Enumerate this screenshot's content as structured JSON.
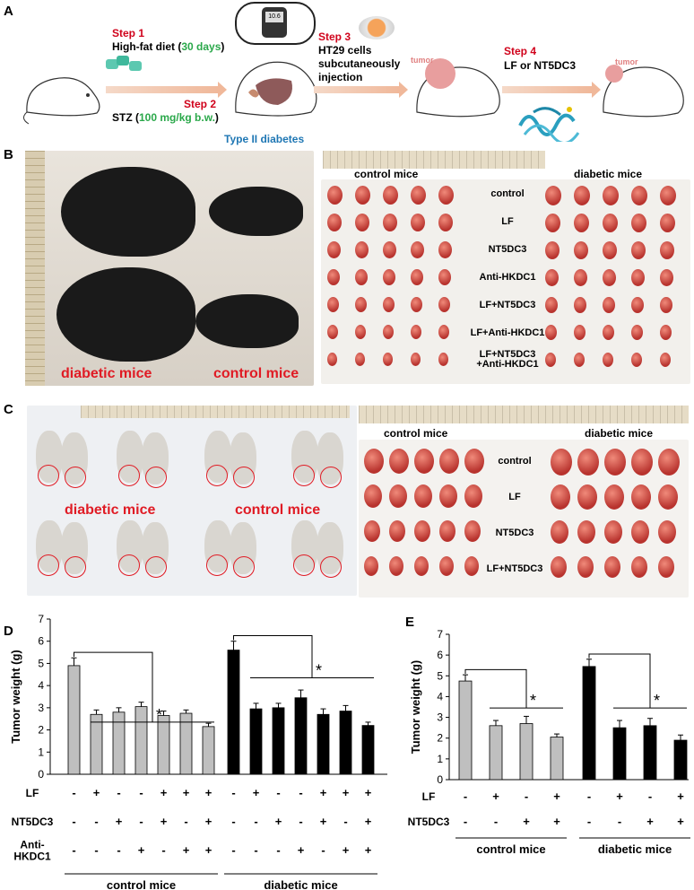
{
  "panels": {
    "A": {
      "letter": "A",
      "step1_title": "Step 1",
      "step1_text": "High-fat diet (",
      "step1_days": "30 days",
      "step1_close": ")",
      "step2_title": "Step 2",
      "step2_text": "STZ (",
      "step2_dose": "100 mg/kg b.w.",
      "step2_close": ")",
      "diabetes_label": "Type II diabetes",
      "glucometer_text": "10.6",
      "step3_title": "Step 3",
      "step3_text_1": "HT29 cells",
      "step3_text_2": "subcutaneously",
      "step3_text_3": "injection",
      "tumor_label_1": "tumor",
      "step4_title": "Step 4",
      "step4_text": "LF or NT5DC3",
      "tumor_label_2": "tumor"
    },
    "B": {
      "letter": "B",
      "left_label_diabetic": "diabetic mice",
      "left_label_control": "control mice",
      "header_control": "control mice",
      "header_diabetic": "diabetic mice",
      "rows": [
        "control",
        "LF",
        "NT5DC3",
        "Anti-HKDC1",
        "LF+NT5DC3",
        "LF+Anti-HKDC1",
        "LF+NT5DC3\n+Anti-HKDC1"
      ]
    },
    "C": {
      "letter": "C",
      "label_diabetic": "diabetic mice",
      "label_control": "control mice",
      "header_control": "control mice",
      "header_diabetic": "diabetic mice",
      "rows": [
        "control",
        "LF",
        "NT5DC3",
        "LF+NT5DC3"
      ]
    },
    "D": {
      "letter": "D",
      "factor_labels": [
        "LF",
        "NT5DC3",
        "Anti-\nHKDC1"
      ],
      "factor_rows": [
        [
          "-",
          "+",
          "-",
          "-",
          "+",
          "+",
          "+",
          "-",
          "+",
          "-",
          "-",
          "+",
          "+",
          "+"
        ],
        [
          "-",
          "-",
          "+",
          "-",
          "+",
          "-",
          "+",
          "-",
          "-",
          "+",
          "-",
          "+",
          "-",
          "+"
        ],
        [
          "-",
          "-",
          "-",
          "+",
          "-",
          "+",
          "+",
          "-",
          "-",
          "-",
          "+",
          "-",
          "+",
          "+"
        ]
      ],
      "group_labels": [
        "control mice",
        "diabetic mice"
      ],
      "significance": "*"
    },
    "E": {
      "letter": "E",
      "factor_labels": [
        "LF",
        "NT5DC3"
      ],
      "factor_rows": [
        [
          "-",
          "+",
          "-",
          "+",
          "-",
          "+",
          "-",
          "+"
        ],
        [
          "-",
          "-",
          "+",
          "+",
          "-",
          "-",
          "+",
          "+"
        ]
      ],
      "group_labels": [
        "control mice",
        "diabetic mice"
      ],
      "significance": "*"
    }
  },
  "colors": {
    "step_red": "#d0021b",
    "value_green": "#2aa84a",
    "diabetes_blue": "#1f77b4",
    "bar_control": "#bfbfbf",
    "bar_diabetic": "#000000"
  },
  "chart_data": [
    {
      "type": "bar",
      "panel": "D",
      "ylabel": "Tumor weight (g)",
      "ylim": [
        0,
        7
      ],
      "yticks": [
        0,
        1,
        2,
        3,
        4,
        5,
        6,
        7
      ],
      "groups": [
        "control mice",
        "diabetic mice"
      ],
      "values": [
        4.9,
        2.7,
        2.8,
        3.05,
        2.65,
        2.75,
        2.15,
        5.6,
        2.95,
        3.0,
        3.45,
        2.7,
        2.85,
        2.2
      ],
      "errors": [
        0.35,
        0.2,
        0.2,
        0.2,
        0.2,
        0.15,
        0.15,
        0.4,
        0.25,
        0.2,
        0.35,
        0.25,
        0.25,
        0.15
      ],
      "bar_groups": [
        0,
        0,
        0,
        0,
        0,
        0,
        0,
        1,
        1,
        1,
        1,
        1,
        1,
        1
      ]
    },
    {
      "type": "bar",
      "panel": "E",
      "ylabel": "Tumor weight (g)",
      "ylim": [
        0,
        7
      ],
      "yticks": [
        0,
        1,
        2,
        3,
        4,
        5,
        6,
        7
      ],
      "groups": [
        "control mice",
        "diabetic mice"
      ],
      "values": [
        4.75,
        2.6,
        2.7,
        2.05,
        5.45,
        2.5,
        2.6,
        1.9
      ],
      "errors": [
        0.3,
        0.25,
        0.35,
        0.15,
        0.35,
        0.35,
        0.35,
        0.25
      ],
      "bar_groups": [
        0,
        0,
        0,
        0,
        1,
        1,
        1,
        1
      ]
    }
  ]
}
